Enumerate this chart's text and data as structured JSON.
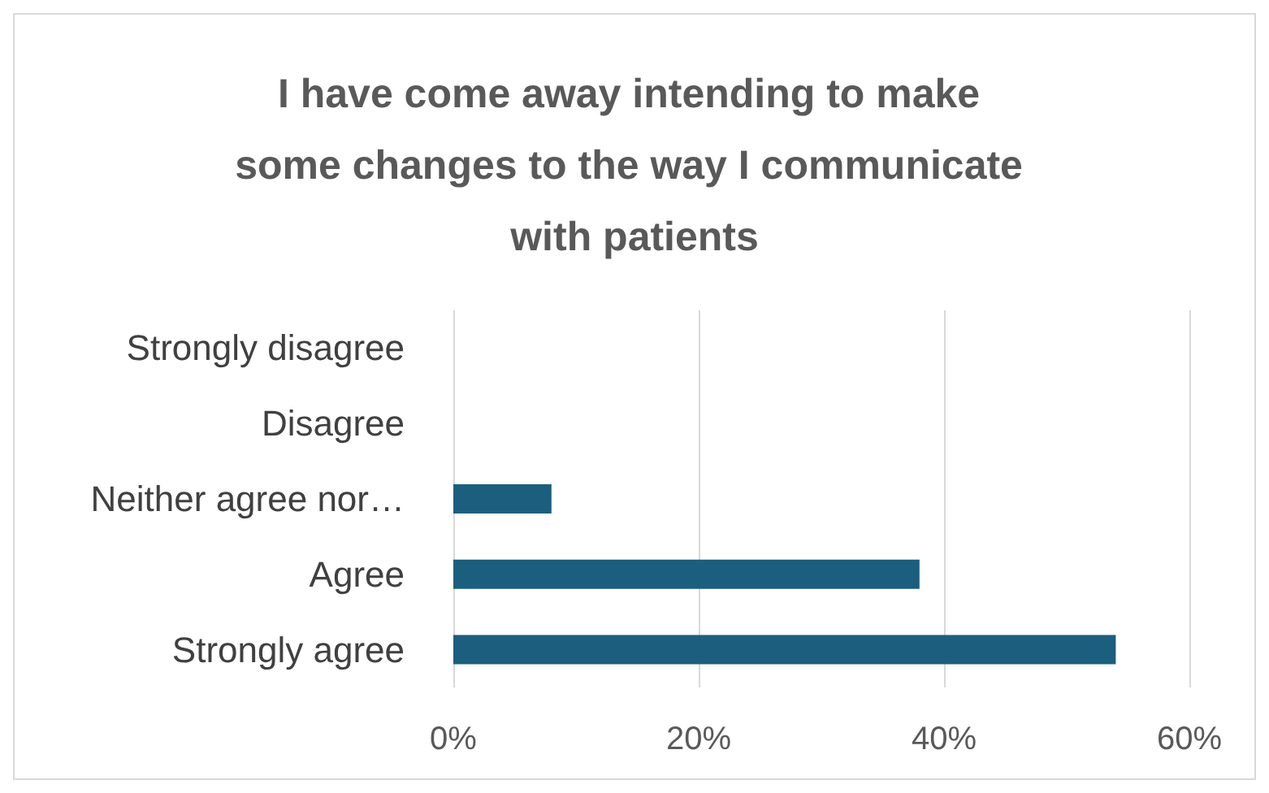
{
  "chart_data": {
    "type": "bar",
    "orientation": "horizontal",
    "title": "I have come away intending to make some changes to the way I communicate with patients",
    "categories": [
      "Strongly disagree",
      "Disagree",
      "Neither agree nor…",
      "Agree",
      "Strongly agree"
    ],
    "values": [
      0,
      0,
      8,
      38,
      54
    ],
    "color": "#1b5e7e",
    "xlim": [
      0,
      60
    ],
    "xticks": [
      {
        "value": 0,
        "label": "0%"
      },
      {
        "value": 20,
        "label": "20%"
      },
      {
        "value": 40,
        "label": "40%"
      },
      {
        "value": 60,
        "label": "60%"
      }
    ],
    "grid": "x"
  }
}
